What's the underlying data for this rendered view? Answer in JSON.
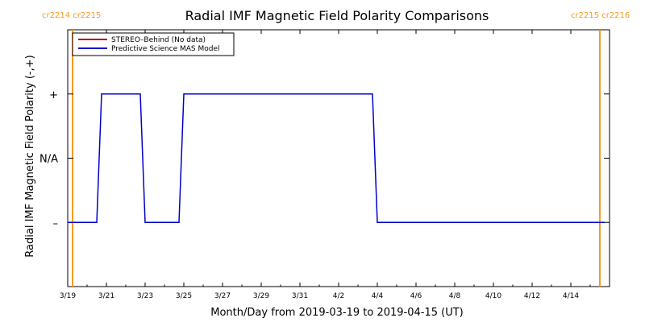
{
  "chart_data": {
    "type": "line",
    "title": "Radial IMF Magnetic Field Polarity Comparisons",
    "xlabel": "Month/Day from 2019-03-19 to 2019-04-15 (UT)",
    "ylabel": "Radial IMF Magnetic Field Polarity (-,+)",
    "x_ticks": [
      {
        "label": "3/19",
        "date": "2019-03-19"
      },
      {
        "label": "3/21",
        "date": "2019-03-21"
      },
      {
        "label": "3/23",
        "date": "2019-03-23"
      },
      {
        "label": "3/25",
        "date": "2019-03-25"
      },
      {
        "label": "3/27",
        "date": "2019-03-27"
      },
      {
        "label": "3/29",
        "date": "2019-03-29"
      },
      {
        "label": "3/31",
        "date": "2019-03-31"
      },
      {
        "label": "4/2",
        "date": "2019-04-02"
      },
      {
        "label": "4/4",
        "date": "2019-04-04"
      },
      {
        "label": "4/6",
        "date": "2019-04-06"
      },
      {
        "label": "4/8",
        "date": "2019-04-08"
      },
      {
        "label": "4/10",
        "date": "2019-04-10"
      },
      {
        "label": "4/12",
        "date": "2019-04-12"
      },
      {
        "label": "4/14",
        "date": "2019-04-14"
      }
    ],
    "xlim": [
      "2019-03-19",
      "2019-04-16"
    ],
    "y_ticks": [
      {
        "label": "+",
        "value": 1
      },
      {
        "label": "N/A",
        "value": 0
      },
      {
        "label": "–",
        "value": -1
      }
    ],
    "ylim": [
      -2,
      2
    ],
    "grid": false,
    "legend_position": "top-left",
    "legend": [
      {
        "label": "STEREO–Behind (No data)",
        "color": "#b00000"
      },
      {
        "label": "Predictive Science MAS Model",
        "color": "#0000cc"
      }
    ],
    "series": [
      {
        "name": "Predictive Science MAS Model",
        "color": "#0000cc",
        "points": [
          {
            "x": "2019-03-19T00:00",
            "y": -1
          },
          {
            "x": "2019-03-20T12:00",
            "y": -1
          },
          {
            "x": "2019-03-20T18:00",
            "y": 1
          },
          {
            "x": "2019-03-22T18:00",
            "y": 1
          },
          {
            "x": "2019-03-23T00:00",
            "y": -1
          },
          {
            "x": "2019-03-24T18:00",
            "y": -1
          },
          {
            "x": "2019-03-25T00:00",
            "y": 1
          },
          {
            "x": "2019-04-03T18:00",
            "y": 1
          },
          {
            "x": "2019-04-04T00:00",
            "y": -1
          },
          {
            "x": "2019-04-15T18:00",
            "y": -1
          }
        ]
      }
    ],
    "carrington_rotations": [
      {
        "labels": [
          "cr2214",
          "cr2215"
        ],
        "x": "2019-03-19T06:00",
        "color": "#f59a23",
        "side": "left"
      },
      {
        "labels": [
          "cr2215",
          "cr2216"
        ],
        "x": "2019-04-15T12:00",
        "color": "#f59a23",
        "side": "right"
      }
    ]
  }
}
